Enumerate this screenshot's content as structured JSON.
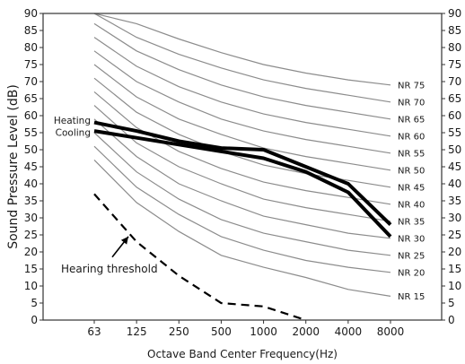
{
  "chart_data": {
    "type": "line",
    "title": "",
    "xlabel": "Octave Band Center Frequency(Hz)",
    "ylabel": "Sound Pressure Level (dB)",
    "categories": [
      "63",
      "125",
      "250",
      "500",
      "1000",
      "2000",
      "4000",
      "8000"
    ],
    "ylim": [
      0,
      90
    ],
    "ytick_step": 5,
    "right_axis": "mirrored",
    "grid": false,
    "nr_curves": [
      {
        "name": "NR 75",
        "values": [
          90,
          87,
          82.5,
          78.5,
          75,
          72.5,
          70.5,
          69
        ]
      },
      {
        "name": "NR 70",
        "values": [
          90,
          83,
          78,
          74,
          70.5,
          68,
          66,
          64
        ]
      },
      {
        "name": "NR 65",
        "values": [
          87,
          79,
          73.5,
          69,
          65.5,
          63,
          61,
          59
        ]
      },
      {
        "name": "NR 60",
        "values": [
          83,
          74.5,
          68.5,
          64,
          60.5,
          58,
          56,
          54
        ]
      },
      {
        "name": "NR 55",
        "values": [
          79,
          70,
          64,
          59,
          55.5,
          53,
          51,
          49
        ]
      },
      {
        "name": "NR 50",
        "values": [
          75,
          65.5,
          59,
          54.5,
          50.5,
          48,
          46,
          44
        ]
      },
      {
        "name": "NR 45",
        "values": [
          71,
          61,
          54.5,
          49.5,
          45.5,
          43,
          41,
          39
        ]
      },
      {
        "name": "NR 40",
        "values": [
          67,
          56.5,
          49.5,
          44.5,
          40.5,
          38,
          36,
          34
        ]
      },
      {
        "name": "NR 35",
        "values": [
          63,
          52,
          45,
          40,
          35.5,
          33,
          31,
          29
        ]
      },
      {
        "name": "NR 30",
        "values": [
          59,
          48,
          40,
          35,
          30.5,
          28,
          25.5,
          24
        ]
      },
      {
        "name": "NR 25",
        "values": [
          55,
          43.5,
          35.5,
          29.5,
          25.5,
          23,
          20.5,
          19
        ]
      },
      {
        "name": "NR 20",
        "values": [
          51,
          39,
          31,
          24.5,
          20.5,
          17.5,
          15.5,
          14
        ]
      },
      {
        "name": "NR 15",
        "values": [
          47,
          34.5,
          26,
          19,
          15.5,
          12.5,
          9,
          7
        ]
      }
    ],
    "series": [
      {
        "name": "Heating",
        "values": [
          58,
          55.5,
          52.5,
          50.5,
          50,
          45,
          40,
          28
        ]
      },
      {
        "name": "Cooling",
        "values": [
          55.5,
          53.5,
          51.5,
          49.5,
          47.5,
          43.5,
          37.5,
          24.5
        ]
      }
    ],
    "threshold": {
      "name": "Hearing threshold",
      "values": [
        37,
        23,
        13,
        5,
        4,
        0
      ]
    },
    "annotations": {
      "hearing_threshold": "Hearing threshold"
    },
    "colors": {
      "nr_line": "#8c8c8c",
      "series_line": "#000000",
      "threshold_line": "#000000",
      "axis": "#333333"
    }
  }
}
